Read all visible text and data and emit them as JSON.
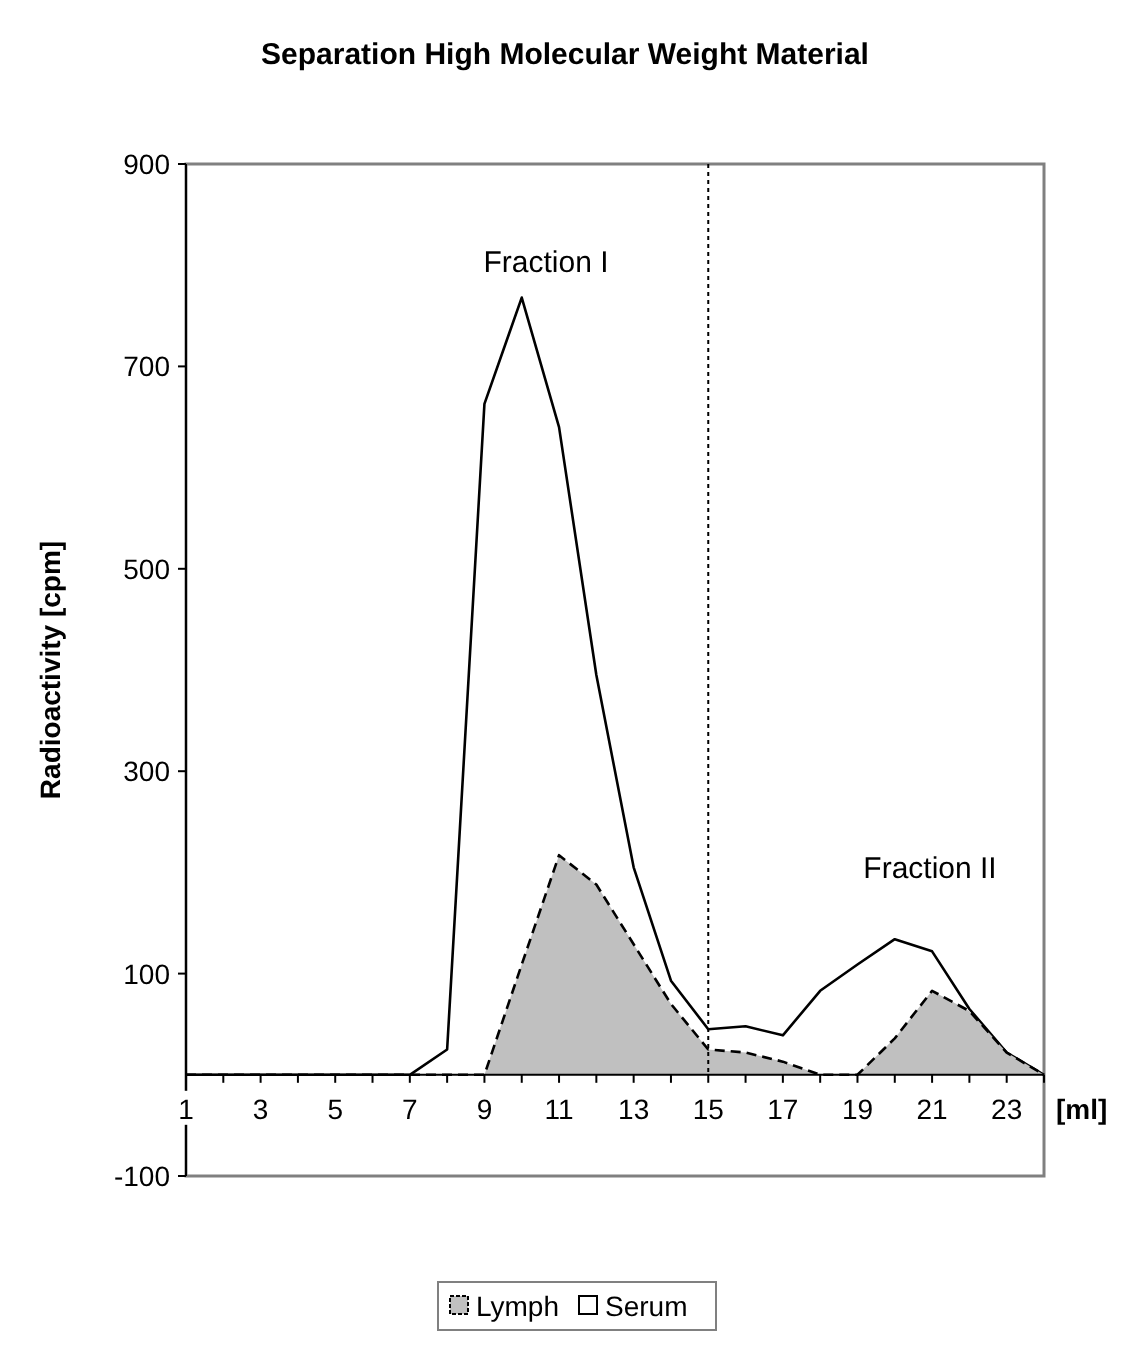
{
  "chart_data": {
    "type": "area",
    "title": "Separation High Molecular Weight Material",
    "xlabel": "[ml]",
    "ylabel": "Radioactivity [cpm]",
    "x": [
      1,
      2,
      3,
      4,
      5,
      6,
      7,
      8,
      9,
      10,
      11,
      12,
      13,
      14,
      15,
      16,
      17,
      18,
      19,
      20,
      21,
      22,
      23,
      24
    ],
    "series": [
      {
        "name": "Serum",
        "color": "#ffffff",
        "line_style": "solid",
        "values": [
          0,
          0,
          0,
          0,
          0,
          0,
          0,
          25,
          663,
          768,
          640,
          395,
          205,
          93,
          45,
          48,
          39,
          83,
          109,
          134,
          122,
          65,
          22,
          0
        ]
      },
      {
        "name": "Lymph",
        "color": "#c0c0c0",
        "line_style": "dashed",
        "values": [
          0,
          0,
          0,
          0,
          0,
          0,
          0,
          0,
          0,
          109,
          217,
          188,
          129,
          70,
          25,
          22,
          13,
          0,
          0,
          36,
          83,
          63,
          22,
          0
        ]
      }
    ],
    "xlim": [
      1,
      24
    ],
    "xticks": [
      1,
      {
        "value": 2,
        "label": null
      },
      3,
      {
        "value": 4,
        "label": null
      },
      5,
      {
        "value": 6,
        "label": null
      },
      7,
      {
        "value": 8,
        "label": null
      },
      9,
      {
        "value": 10,
        "label": null
      },
      11,
      {
        "value": 12,
        "label": null
      },
      13,
      {
        "value": 14,
        "label": null
      },
      15,
      {
        "value": 16,
        "label": null
      },
      17,
      {
        "value": 18,
        "label": null
      },
      19,
      {
        "value": 20,
        "label": null
      },
      21,
      {
        "value": 22,
        "label": null
      },
      23,
      {
        "value": 24,
        "label": null
      }
    ],
    "ylim": [
      -100,
      900
    ],
    "yticks": [
      -100,
      100,
      300,
      500,
      700,
      900
    ],
    "ref_lines": [
      {
        "axis": "x",
        "value": 15,
        "line_style": "dotted"
      }
    ],
    "annotations": [
      "Fraction I",
      "Fraction II"
    ],
    "legend": "bottom",
    "grid": false
  }
}
